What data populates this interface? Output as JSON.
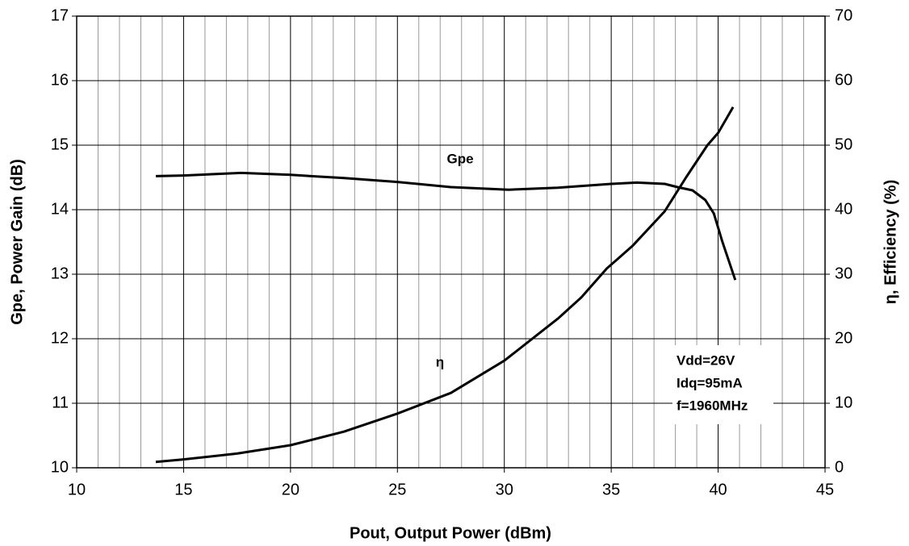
{
  "chart_data": {
    "type": "line",
    "xlabel": "Pout, Output Power (dBm)",
    "ylabel": "Gpe, Power Gain (dB)",
    "y2label": "η, Efficiency (%)",
    "xlim": [
      10,
      45
    ],
    "xticks": [
      10,
      15,
      20,
      25,
      30,
      35,
      40,
      45
    ],
    "xminorticks": [
      11,
      12,
      13,
      14,
      16,
      17,
      18,
      19,
      21,
      22,
      23,
      24,
      26,
      27,
      28,
      29,
      31,
      32,
      33,
      34,
      36,
      37,
      38,
      39,
      41,
      42,
      43,
      44
    ],
    "ylim": [
      10,
      17
    ],
    "yticks": [
      10,
      11,
      12,
      13,
      14,
      15,
      16,
      17
    ],
    "y2lim": [
      0,
      70
    ],
    "y2ticks": [
      0,
      10,
      20,
      30,
      40,
      50,
      60,
      70
    ],
    "grid": true,
    "series": [
      {
        "name": "Gpe",
        "color": "#000000",
        "x": [
          13.7,
          15,
          17.7,
          20,
          22.5,
          25,
          27.5,
          30.2,
          32.5,
          35,
          36.2,
          37.5,
          38.1,
          38.8,
          39.4,
          39.8,
          40.2,
          40.8
        ],
        "values": [
          14.52,
          14.53,
          14.57,
          14.54,
          14.49,
          14.43,
          14.35,
          14.31,
          14.34,
          14.4,
          14.42,
          14.4,
          14.35,
          14.3,
          14.15,
          13.94,
          13.5,
          12.91
        ]
      },
      {
        "name": "η",
        "color": "#000000",
        "axis": "y2",
        "x": [
          13.7,
          15,
          17.5,
          20,
          22.5,
          25,
          27.5,
          30,
          32.5,
          33.6,
          34.8,
          36,
          37.5,
          38.5,
          39.5,
          40,
          40.7
        ],
        "values": [
          0.9,
          1.3,
          2.2,
          3.5,
          5.6,
          8.4,
          11.6,
          16.6,
          23.1,
          26.4,
          30.9,
          34.4,
          39.75,
          45,
          50,
          51.9,
          55.9
        ]
      }
    ],
    "conditions": [
      "Vdd=26V",
      "Idq=95mA",
      "f=1960MHz"
    ]
  }
}
